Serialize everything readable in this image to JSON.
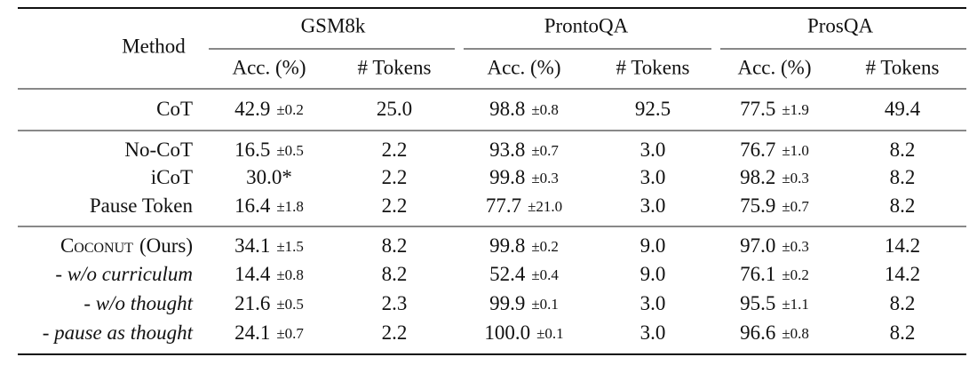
{
  "header": {
    "method": "Method",
    "groups": [
      {
        "name": "GSM8k",
        "columns": [
          "Acc. (%)",
          "# Tokens"
        ]
      },
      {
        "name": "ProntoQA",
        "columns": [
          "Acc. (%)",
          "# Tokens"
        ]
      },
      {
        "name": "ProsQA",
        "columns": [
          "Acc. (%)",
          "# Tokens"
        ]
      }
    ]
  },
  "sections": [
    {
      "rows": [
        {
          "method": "CoT",
          "cells": [
            {
              "value": "42.9",
              "std": "±0.2"
            },
            {
              "value": "25.0"
            },
            {
              "value": "98.8",
              "std": "±0.8"
            },
            {
              "value": "92.5"
            },
            {
              "value": "77.5",
              "std": "±1.9"
            },
            {
              "value": "49.4"
            }
          ]
        }
      ]
    },
    {
      "rows": [
        {
          "method": "No-CoT",
          "cells": [
            {
              "value": "16.5",
              "std": "±0.5"
            },
            {
              "value": "2.2"
            },
            {
              "value": "93.8",
              "std": "±0.7"
            },
            {
              "value": "3.0"
            },
            {
              "value": "76.7",
              "std": "±1.0"
            },
            {
              "value": "8.2"
            }
          ]
        },
        {
          "method": "iCoT",
          "cells": [
            {
              "value": "30.0*"
            },
            {
              "value": "2.2"
            },
            {
              "value": "99.8",
              "std": "±0.3"
            },
            {
              "value": "3.0"
            },
            {
              "value": "98.2",
              "std": "±0.3"
            },
            {
              "value": "8.2"
            }
          ]
        },
        {
          "method": "Pause Token",
          "cells": [
            {
              "value": "16.4",
              "std": "±1.8"
            },
            {
              "value": "2.2"
            },
            {
              "value": "77.7",
              "std": "±21.0"
            },
            {
              "value": "3.0"
            },
            {
              "value": "75.9",
              "std": "±0.7"
            },
            {
              "value": "8.2"
            }
          ]
        }
      ]
    },
    {
      "rows": [
        {
          "method": "Coconut",
          "method_suffix": "(Ours)",
          "emphasis": "small-caps",
          "cells": [
            {
              "value": "34.1",
              "std": "±1.5"
            },
            {
              "value": "8.2"
            },
            {
              "value": "99.8",
              "std": "±0.2"
            },
            {
              "value": "9.0"
            },
            {
              "value": "97.0",
              "std": "±0.3"
            },
            {
              "value": "14.2"
            }
          ]
        },
        {
          "method": "- w/o curriculum",
          "emphasis": "italic",
          "cells": [
            {
              "value": "14.4",
              "std": "±0.8"
            },
            {
              "value": "8.2"
            },
            {
              "value": "52.4",
              "std": "±0.4"
            },
            {
              "value": "9.0"
            },
            {
              "value": "76.1",
              "std": "±0.2"
            },
            {
              "value": "14.2"
            }
          ]
        },
        {
          "method": "- w/o thought",
          "emphasis": "italic",
          "cells": [
            {
              "value": "21.6",
              "std": "±0.5"
            },
            {
              "value": "2.3"
            },
            {
              "value": "99.9",
              "std": "±0.1"
            },
            {
              "value": "3.0"
            },
            {
              "value": "95.5",
              "std": "±1.1"
            },
            {
              "value": "8.2"
            }
          ]
        },
        {
          "method": "- pause as thought",
          "emphasis": "italic",
          "cells": [
            {
              "value": "24.1",
              "std": "±0.7"
            },
            {
              "value": "2.2"
            },
            {
              "value": "100.0",
              "std": "±0.1"
            },
            {
              "value": "3.0"
            },
            {
              "value": "96.6",
              "std": "±0.8"
            },
            {
              "value": "8.2"
            }
          ]
        }
      ]
    }
  ]
}
